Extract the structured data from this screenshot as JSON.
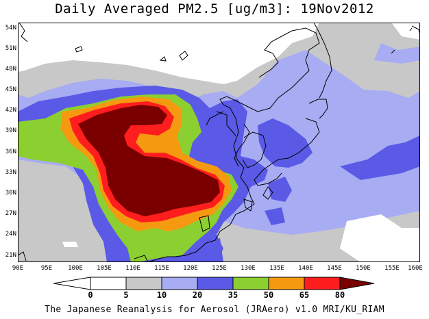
{
  "title": "Daily Averaged PM2.5 [ug/m3]: 19Nov2012",
  "credit": "The Japanese Reanalysis for Aerosol (JRAero) v1.0 MRI/KU_RIAM",
  "lat_ticks": [
    "54N",
    "51N",
    "48N",
    "45N",
    "42N",
    "39N",
    "36N",
    "33N",
    "30N",
    "27N",
    "24N",
    "21N"
  ],
  "lon_ticks": [
    "90E",
    "95E",
    "100E",
    "105E",
    "110E",
    "115E",
    "120E",
    "125E",
    "130E",
    "135E",
    "140E",
    "145E",
    "150E",
    "155E",
    "160E"
  ],
  "colorbar": {
    "labels": [
      "0",
      "5",
      "10",
      "20",
      "35",
      "50",
      "65",
      "80"
    ],
    "colors": [
      "#ffffff",
      "#c8c8c8",
      "#a8acf2",
      "#5a5ae6",
      "#8ccf30",
      "#f59a10",
      "#ff1e1e",
      "#7a0000"
    ]
  }
}
